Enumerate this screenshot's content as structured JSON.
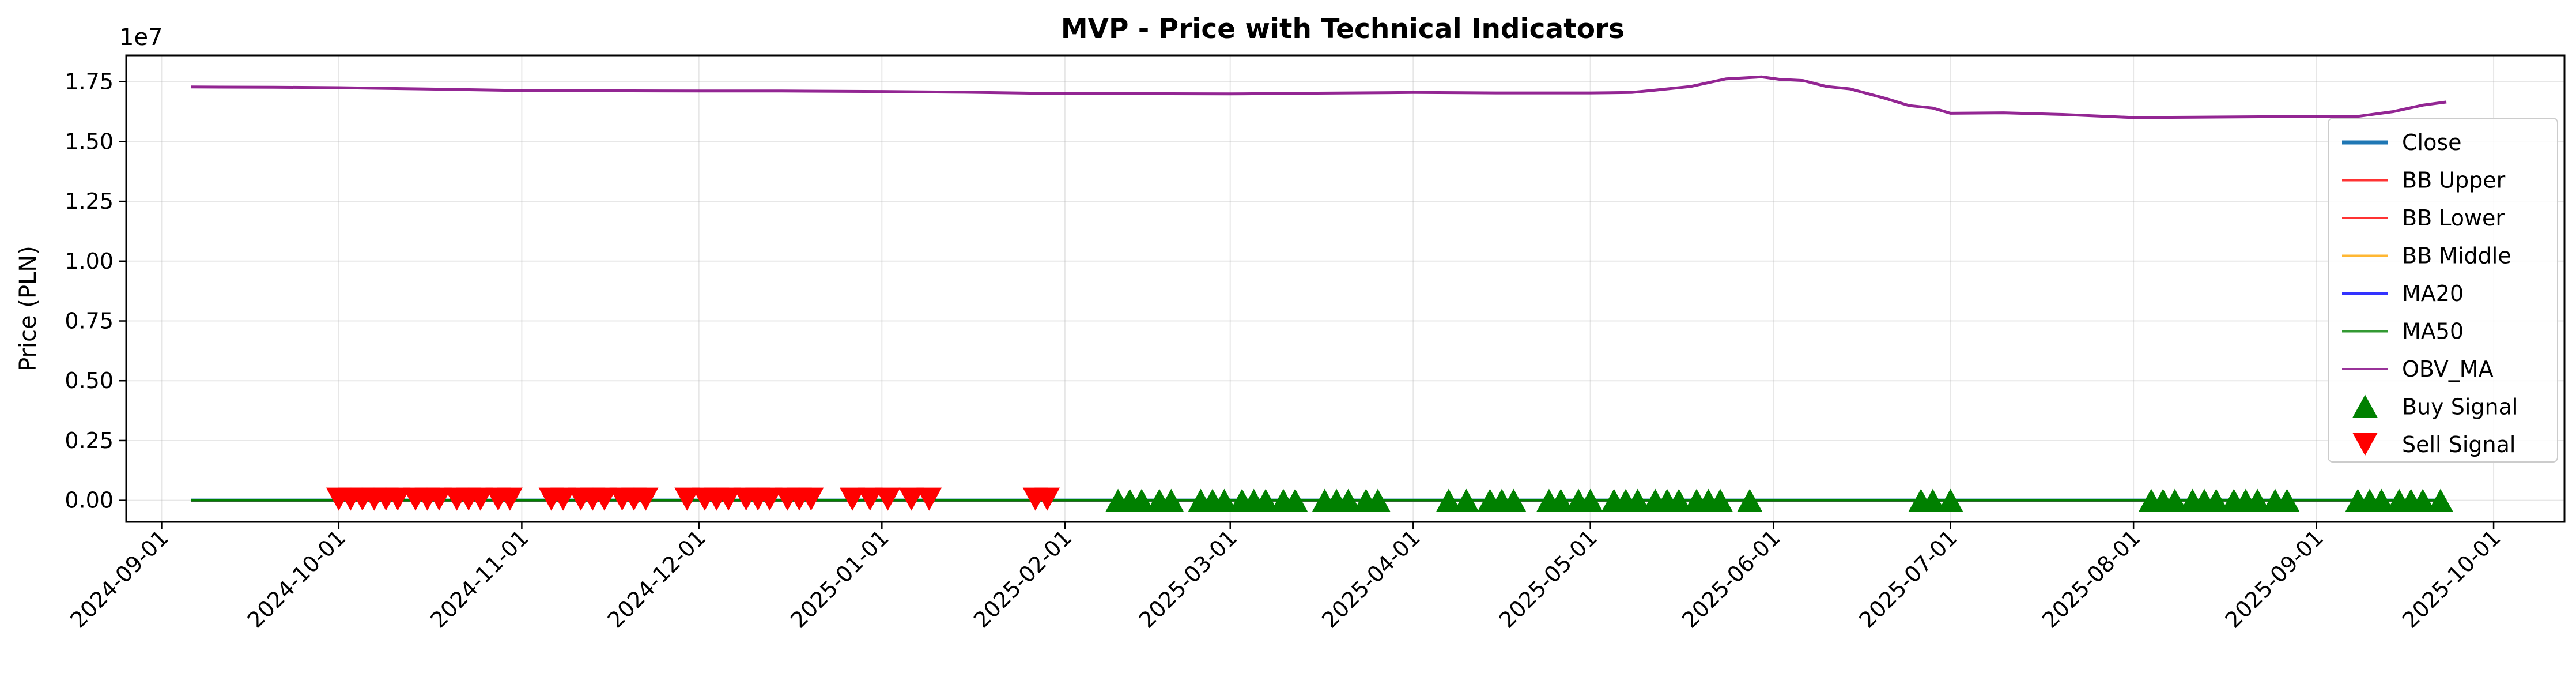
{
  "chart_data": {
    "type": "line",
    "title": "MVP - Price with Technical Indicators",
    "ylabel": "Price (PLN)",
    "xlabel": "",
    "y_offset_label": "1e7",
    "y_scale": 10000000,
    "ylim": [
      -0.09,
      1.86
    ],
    "xlim": [
      "2024-08-26",
      "2025-10-13"
    ],
    "x_ticks": [
      "2024-09-01",
      "2024-10-01",
      "2024-11-01",
      "2024-12-01",
      "2025-01-01",
      "2025-02-01",
      "2025-03-01",
      "2025-04-01",
      "2025-05-01",
      "2025-06-01",
      "2025-07-01",
      "2025-08-01",
      "2025-09-01",
      "2025-10-01"
    ],
    "y_ticks": [
      0.0,
      0.25,
      0.5,
      0.75,
      1.0,
      1.25,
      1.5,
      1.75
    ],
    "y_tick_labels": [
      "0.00",
      "0.25",
      "0.50",
      "0.75",
      "1.00",
      "1.25",
      "1.50",
      "1.75"
    ],
    "grid": true,
    "legend_position": "right",
    "colors": {
      "close": "#1f77b4",
      "bb_upper": "#ff0000",
      "bb_lower": "#ff0000",
      "bb_middle": "#ffa500",
      "ma20": "#0000ff",
      "ma50": "#008000",
      "obv_ma": "#800080",
      "buy": "#008000",
      "sell": "#ff0000"
    },
    "price_level": 0.0,
    "price_series_x_range": [
      "2024-09-06",
      "2025-09-23"
    ],
    "series": [
      {
        "name": "Close",
        "kind": "line",
        "color_key": "close"
      },
      {
        "name": "BB Upper",
        "kind": "line",
        "color_key": "bb_upper"
      },
      {
        "name": "BB Lower",
        "kind": "line",
        "color_key": "bb_lower"
      },
      {
        "name": "BB Middle",
        "kind": "line",
        "color_key": "bb_middle"
      },
      {
        "name": "MA20",
        "kind": "line",
        "color_key": "ma20"
      },
      {
        "name": "MA50",
        "kind": "line",
        "color_key": "ma50"
      },
      {
        "name": "OBV_MA",
        "kind": "line",
        "color_key": "obv_ma"
      },
      {
        "name": "Buy Signal",
        "kind": "marker-up",
        "color_key": "buy"
      },
      {
        "name": "Sell Signal",
        "kind": "marker-down",
        "color_key": "sell"
      }
    ],
    "obv_ma": [
      [
        "2024-09-06",
        1.728
      ],
      [
        "2024-09-20",
        1.727
      ],
      [
        "2024-10-01",
        1.725
      ],
      [
        "2024-10-15",
        1.72
      ],
      [
        "2024-11-01",
        1.713
      ],
      [
        "2024-11-15",
        1.712
      ],
      [
        "2024-12-01",
        1.711
      ],
      [
        "2024-12-15",
        1.711
      ],
      [
        "2025-01-01",
        1.709
      ],
      [
        "2025-01-15",
        1.706
      ],
      [
        "2025-02-01",
        1.7
      ],
      [
        "2025-02-15",
        1.7
      ],
      [
        "2025-03-01",
        1.699
      ],
      [
        "2025-03-15",
        1.702
      ],
      [
        "2025-04-01",
        1.705
      ],
      [
        "2025-04-15",
        1.703
      ],
      [
        "2025-05-01",
        1.703
      ],
      [
        "2025-05-08",
        1.705
      ],
      [
        "2025-05-12",
        1.715
      ],
      [
        "2025-05-18",
        1.73
      ],
      [
        "2025-05-24",
        1.762
      ],
      [
        "2025-05-30",
        1.77
      ],
      [
        "2025-06-02",
        1.76
      ],
      [
        "2025-06-06",
        1.755
      ],
      [
        "2025-06-10",
        1.73
      ],
      [
        "2025-06-14",
        1.72
      ],
      [
        "2025-06-20",
        1.68
      ],
      [
        "2025-06-24",
        1.65
      ],
      [
        "2025-06-28",
        1.64
      ],
      [
        "2025-07-01",
        1.618
      ],
      [
        "2025-07-10",
        1.62
      ],
      [
        "2025-07-20",
        1.613
      ],
      [
        "2025-08-01",
        1.6
      ],
      [
        "2025-08-15",
        1.602
      ],
      [
        "2025-09-01",
        1.605
      ],
      [
        "2025-09-08",
        1.605
      ],
      [
        "2025-09-14",
        1.625
      ],
      [
        "2025-09-19",
        1.652
      ],
      [
        "2025-09-23",
        1.665
      ]
    ],
    "sell_signals": [
      "2024-10-01",
      "2024-10-03",
      "2024-10-05",
      "2024-10-07",
      "2024-10-09",
      "2024-10-11",
      "2024-10-14",
      "2024-10-16",
      "2024-10-18",
      "2024-10-21",
      "2024-10-23",
      "2024-10-25",
      "2024-10-28",
      "2024-10-30",
      "2024-11-06",
      "2024-11-08",
      "2024-11-11",
      "2024-11-13",
      "2024-11-15",
      "2024-11-18",
      "2024-11-20",
      "2024-11-22",
      "2024-11-29",
      "2024-12-02",
      "2024-12-04",
      "2024-12-06",
      "2024-12-09",
      "2024-12-11",
      "2024-12-13",
      "2024-12-16",
      "2024-12-18",
      "2024-12-20",
      "2024-12-27",
      "2024-12-30",
      "2025-01-02",
      "2025-01-06",
      "2025-01-09",
      "2025-01-27",
      "2025-01-29"
    ],
    "buy_signals": [
      "2025-02-10",
      "2025-02-12",
      "2025-02-14",
      "2025-02-17",
      "2025-02-19",
      "2025-02-24",
      "2025-02-26",
      "2025-02-28",
      "2025-03-03",
      "2025-03-05",
      "2025-03-07",
      "2025-03-10",
      "2025-03-12",
      "2025-03-17",
      "2025-03-19",
      "2025-03-21",
      "2025-03-24",
      "2025-03-26",
      "2025-04-07",
      "2025-04-10",
      "2025-04-14",
      "2025-04-16",
      "2025-04-18",
      "2025-04-24",
      "2025-04-26",
      "2025-04-29",
      "2025-05-01",
      "2025-05-05",
      "2025-05-07",
      "2025-05-09",
      "2025-05-12",
      "2025-05-14",
      "2025-05-16",
      "2025-05-19",
      "2025-05-21",
      "2025-05-23",
      "2025-05-28",
      "2025-06-26",
      "2025-06-28",
      "2025-07-01",
      "2025-08-04",
      "2025-08-06",
      "2025-08-08",
      "2025-08-11",
      "2025-08-13",
      "2025-08-15",
      "2025-08-18",
      "2025-08-20",
      "2025-08-22",
      "2025-08-25",
      "2025-08-27",
      "2025-09-08",
      "2025-09-10",
      "2025-09-12",
      "2025-09-15",
      "2025-09-17",
      "2025-09-19",
      "2025-09-22"
    ]
  }
}
